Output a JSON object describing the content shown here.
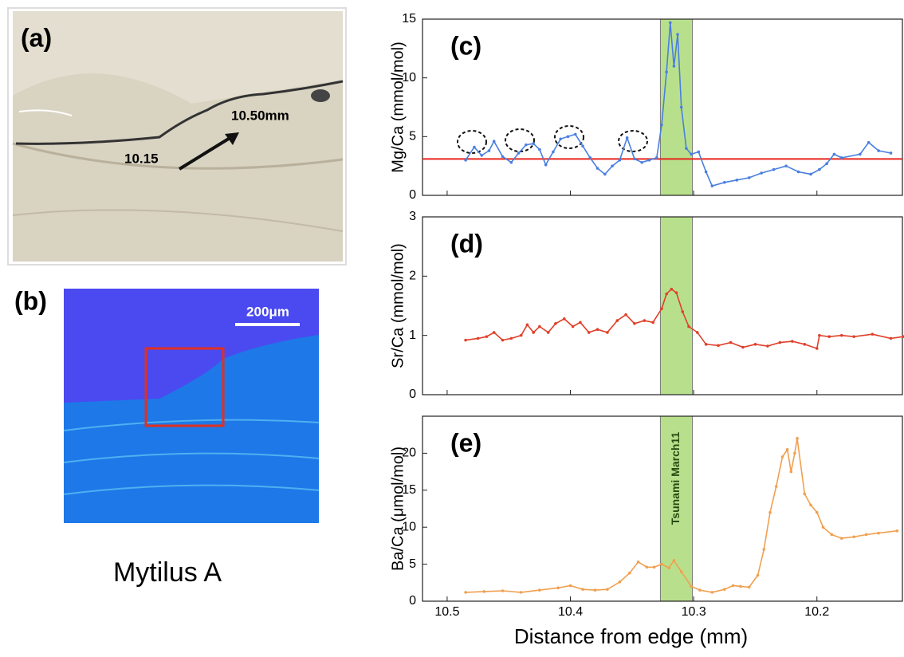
{
  "panel_a": {
    "label": "(a)",
    "annotations": [
      "10.50mm",
      "10.15"
    ]
  },
  "panel_b": {
    "label": "(b)",
    "scale_bar": "200μm"
  },
  "caption": "Mytilus A",
  "chart_data": [
    {
      "type": "line",
      "panel_label": "(c)",
      "ylabel": "Mg/Ca (mmol/mol)",
      "color": "#4a7fe0",
      "xlim": [
        10.52,
        10.13
      ],
      "xticks": [
        10.5,
        10.4,
        10.3,
        10.2
      ],
      "ylim": [
        0,
        15
      ],
      "yticks": [
        0,
        5,
        10,
        15
      ],
      "hline": {
        "value": 3.1,
        "color": "#e8261c"
      },
      "x": [
        10.485,
        10.478,
        10.472,
        10.466,
        10.462,
        10.455,
        10.448,
        10.442,
        10.436,
        10.43,
        10.425,
        10.42,
        10.414,
        10.408,
        10.402,
        10.396,
        10.39,
        10.384,
        10.378,
        10.372,
        10.366,
        10.36,
        10.354,
        10.348,
        10.342,
        10.336,
        10.33,
        10.326,
        10.322,
        10.319,
        10.316,
        10.313,
        10.31,
        10.306,
        10.302,
        10.296,
        10.29,
        10.285,
        10.275,
        10.265,
        10.255,
        10.245,
        10.235,
        10.225,
        10.215,
        10.205,
        10.198,
        10.192,
        10.186,
        10.18,
        10.165,
        10.158,
        10.15,
        10.14
      ],
      "values": [
        3.0,
        4.1,
        3.4,
        3.8,
        4.6,
        3.3,
        2.8,
        3.6,
        4.3,
        4.4,
        3.9,
        2.6,
        3.7,
        4.8,
        5.0,
        5.2,
        4.2,
        3.2,
        2.3,
        1.8,
        2.5,
        3.0,
        4.9,
        3.1,
        2.8,
        3.0,
        3.2,
        6.0,
        10.5,
        14.7,
        11.0,
        13.7,
        7.5,
        4.0,
        3.5,
        3.7,
        2.0,
        0.8,
        1.1,
        1.3,
        1.5,
        1.9,
        2.2,
        2.5,
        2.0,
        1.8,
        2.2,
        2.7,
        3.5,
        3.2,
        3.5,
        4.5,
        3.8,
        3.6
      ]
    },
    {
      "type": "line",
      "panel_label": "(d)",
      "ylabel": "Sr/Ca (mmol/mol)",
      "color": "#e0402a",
      "xlim": [
        10.52,
        10.13
      ],
      "xticks": [
        10.5,
        10.4,
        10.3,
        10.2
      ],
      "ylim": [
        0,
        3
      ],
      "yticks": [
        0,
        1,
        2,
        3
      ],
      "x": [
        10.485,
        10.475,
        10.468,
        10.462,
        10.455,
        10.448,
        10.44,
        10.435,
        10.43,
        10.425,
        10.418,
        10.412,
        10.405,
        10.398,
        10.392,
        10.385,
        10.378,
        10.37,
        10.362,
        10.355,
        10.348,
        10.34,
        10.333,
        10.326,
        10.322,
        10.318,
        10.314,
        10.309,
        10.304,
        10.297,
        10.29,
        10.28,
        10.27,
        10.26,
        10.25,
        10.24,
        10.23,
        10.22,
        10.21,
        10.2,
        10.198,
        10.19,
        10.18,
        10.17,
        10.155,
        10.14,
        10.13
      ],
      "values": [
        0.92,
        0.95,
        0.98,
        1.05,
        0.92,
        0.95,
        1.0,
        1.18,
        1.05,
        1.15,
        1.05,
        1.2,
        1.28,
        1.15,
        1.22,
        1.05,
        1.1,
        1.05,
        1.25,
        1.35,
        1.2,
        1.25,
        1.22,
        1.45,
        1.7,
        1.78,
        1.72,
        1.4,
        1.15,
        1.05,
        0.85,
        0.83,
        0.88,
        0.8,
        0.85,
        0.82,
        0.88,
        0.9,
        0.85,
        0.78,
        1.0,
        0.98,
        1.0,
        0.98,
        1.02,
        0.95,
        0.98
      ]
    },
    {
      "type": "line",
      "panel_label": "(e)",
      "ylabel": "Ba/Ca (μmol/mol)",
      "xlabel": "Distance from edge (mm)",
      "color": "#f0a050",
      "xlim": [
        10.52,
        10.13
      ],
      "xticks": [
        10.5,
        10.4,
        10.3,
        10.2
      ],
      "ylim": [
        0,
        25
      ],
      "yticks": [
        0,
        5,
        10,
        15,
        20
      ],
      "band": {
        "label": "Tsunami March11",
        "xrange": [
          10.327,
          10.301
        ],
        "color": "#b8e08c"
      },
      "x": [
        10.485,
        10.47,
        10.455,
        10.44,
        10.425,
        10.41,
        10.4,
        10.39,
        10.38,
        10.37,
        10.36,
        10.352,
        10.345,
        10.338,
        10.332,
        10.326,
        10.32,
        10.316,
        10.31,
        10.302,
        10.295,
        10.285,
        10.275,
        10.268,
        10.262,
        10.255,
        10.248,
        10.243,
        10.238,
        10.233,
        10.228,
        10.224,
        10.221,
        10.218,
        10.216,
        10.21,
        10.205,
        10.2,
        10.195,
        10.188,
        10.18,
        10.17,
        10.16,
        10.15,
        10.135
      ],
      "values": [
        1.2,
        1.3,
        1.4,
        1.2,
        1.5,
        1.8,
        2.1,
        1.6,
        1.5,
        1.6,
        2.6,
        3.8,
        5.3,
        4.6,
        4.6,
        5.0,
        4.5,
        5.5,
        4.0,
        2.0,
        1.5,
        1.2,
        1.6,
        2.1,
        2.0,
        1.9,
        3.5,
        7.0,
        12.0,
        15.5,
        19.5,
        20.5,
        17.5,
        20.0,
        22.0,
        14.5,
        13.0,
        12.0,
        10.0,
        9.0,
        8.5,
        8.7,
        9.0,
        9.2,
        9.5
      ]
    }
  ]
}
